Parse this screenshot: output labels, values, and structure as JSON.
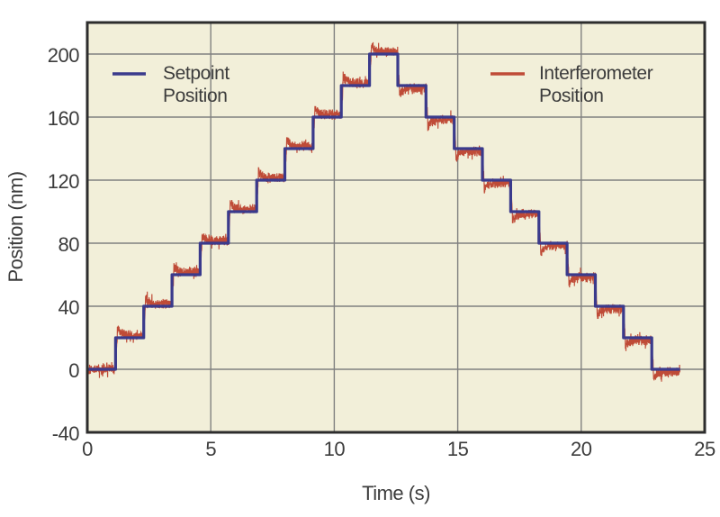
{
  "chart_data": {
    "type": "line",
    "title": "",
    "xlabel": "Time (s)",
    "ylabel": "Position (nm)",
    "xlim": [
      0,
      25
    ],
    "ylim": [
      -40,
      220
    ],
    "xticks": [
      0,
      5,
      10,
      15,
      20,
      25
    ],
    "yticks": [
      -40,
      0,
      40,
      80,
      120,
      160,
      200
    ],
    "grid": true,
    "colors": {
      "plot_background": "#f2efd9",
      "grid": "#808080",
      "border": "#2d2d2d",
      "text": "#3c3c3c",
      "setpoint": "#3a3a8c",
      "interferometer": "#bf4b37"
    },
    "legend": [
      {
        "label": "Setpoint\nPosition",
        "series": "setpoint",
        "color": "#3a3a8c"
      },
      {
        "label": "Interferometer\nPosition",
        "series": "interferometer",
        "color": "#bf4b37"
      }
    ],
    "legend_position": "top-inside",
    "series": [
      {
        "name": "Setpoint Position",
        "style": "step",
        "color": "#3a3a8c",
        "step_levels_nm": [
          0,
          20,
          40,
          60,
          80,
          100,
          120,
          140,
          160,
          180,
          200,
          180,
          160,
          140,
          120,
          100,
          80,
          60,
          40,
          20,
          0
        ],
        "step_height_nm": 20,
        "total_time_s": 24
      },
      {
        "name": "Interferometer Position",
        "style": "noisy-step",
        "color": "#bf4b37",
        "tracks": "Setpoint Position",
        "noise_amplitude_nm": 3.6,
        "settling_bias_nm": 1.7,
        "overshoot_nm": 5
      }
    ]
  }
}
